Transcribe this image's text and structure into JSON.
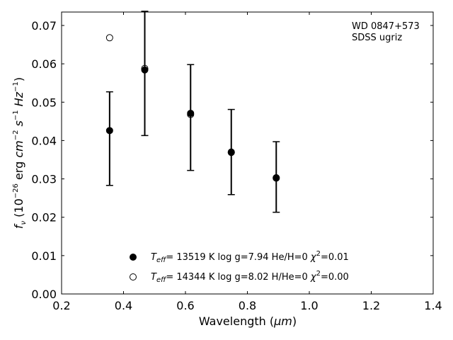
{
  "chart_data": {
    "type": "scatter",
    "xlabel_prefix": "Wavelength (",
    "xlabel_unit": "μm",
    "xlabel_suffix": ")",
    "ylabel": {
      "f": "f",
      "nu": "ν",
      "open": " (10",
      "exp1": "−26",
      "mid1": " erg ",
      "cm": "cm",
      "exp2": "−2",
      "s": " s",
      "exp3": "−1",
      "hz": " Hz",
      "exp4": "−1",
      "close": ")"
    },
    "xlim": [
      0.2,
      1.4
    ],
    "ylim": [
      0.0,
      0.0735
    ],
    "x_ticks": [
      0.2,
      0.4,
      0.6,
      0.8,
      1.0,
      1.2,
      1.4
    ],
    "x_tick_labels": [
      "0.2",
      "0.4",
      "0.6",
      "0.8",
      "1.0",
      "1.2",
      "1.4"
    ],
    "y_ticks": [
      0.0,
      0.01,
      0.02,
      0.03,
      0.04,
      0.05,
      0.06,
      0.07
    ],
    "y_tick_labels": [
      "0.00",
      "0.01",
      "0.02",
      "0.03",
      "0.04",
      "0.05",
      "0.06",
      "0.07"
    ],
    "annotation": [
      "WD 0847+573",
      "SDSS ugriz"
    ],
    "observed": {
      "x": [
        0.3551,
        0.4686,
        0.6166,
        0.748,
        0.8932
      ],
      "y": [
        0.0405,
        0.0575,
        0.046,
        0.037,
        0.0305
      ],
      "yerr": [
        0.0122,
        0.0162,
        0.0138,
        0.0111,
        0.0092
      ]
    },
    "series": [
      {
        "marker": "filled",
        "x": [
          0.3551,
          0.4686,
          0.6166,
          0.748,
          0.8932
        ],
        "y": [
          0.0426,
          0.0584,
          0.0471,
          0.037,
          0.0302
        ],
        "label": {
          "t": "T",
          "t_sub": "eff",
          "rest": "= 13519 K  log g=7.94  He/H=0  ",
          "chi": "χ",
          "chi_sup": "2",
          "chi_val": "=0.01"
        }
      },
      {
        "marker": "open",
        "x": [
          0.3551,
          0.4686,
          0.6166,
          0.748,
          0.8932
        ],
        "y": [
          0.0668,
          0.0588,
          0.0468,
          0.0369,
          0.0303
        ],
        "label": {
          "t": "T",
          "t_sub": "eff",
          "rest": "= 14344 K  log g=8.02  H/He=0  ",
          "chi": "χ",
          "chi_sup": "2",
          "chi_val": "=0.00"
        }
      }
    ]
  }
}
